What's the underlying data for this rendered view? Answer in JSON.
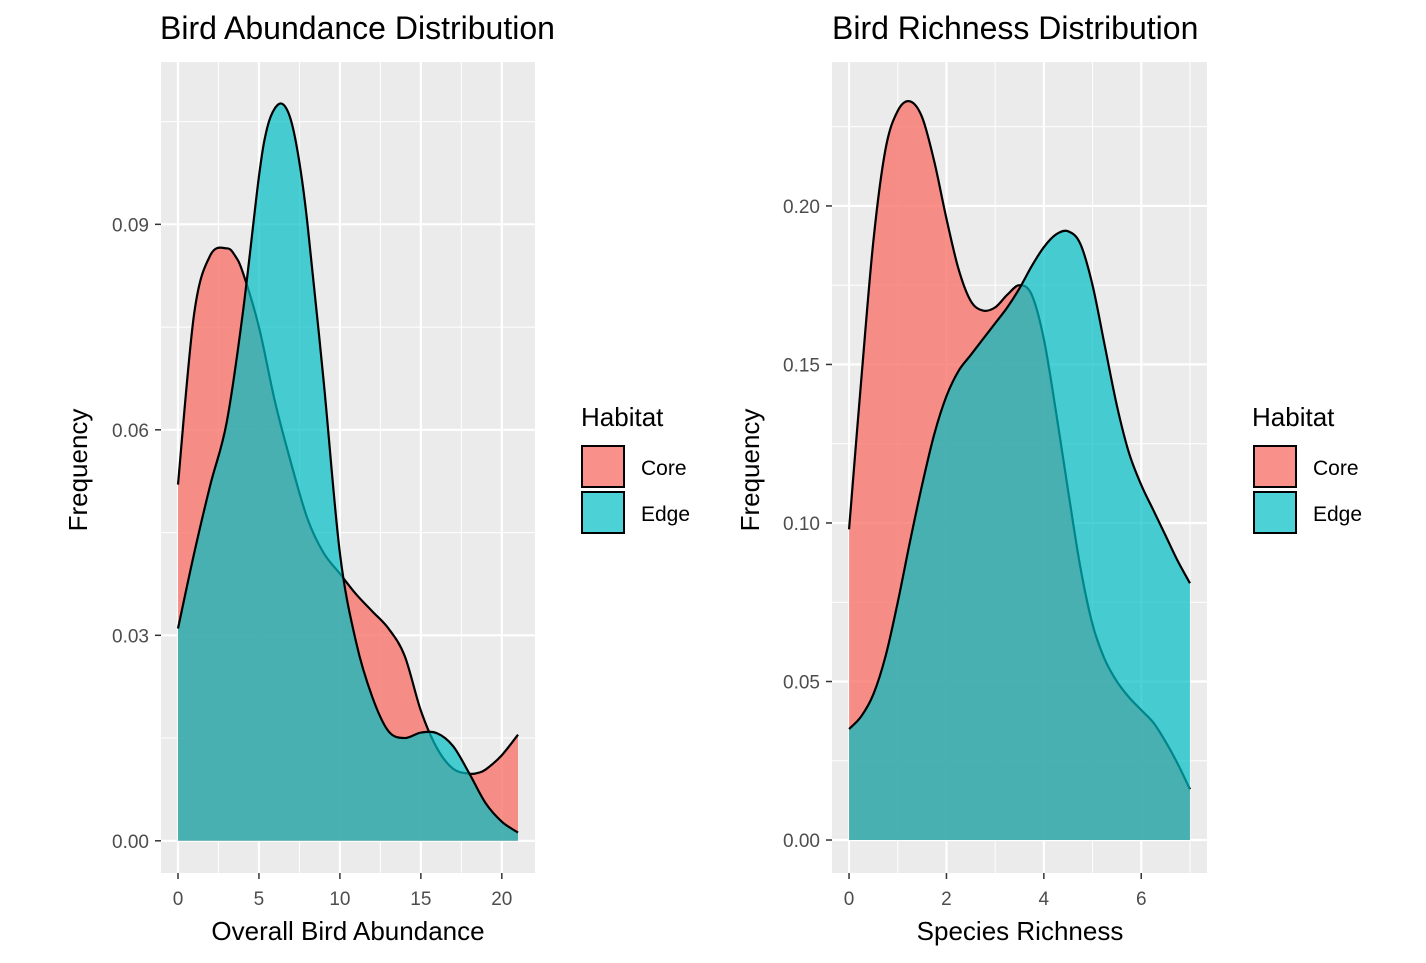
{
  "chart_data": [
    {
      "type": "area",
      "title": "Bird Abundance Distribution",
      "xlabel": "Overall Bird Abundance",
      "ylabel": "Frequency",
      "xlim": [
        -1.05,
        22.05
      ],
      "ylim": [
        -0.0047,
        0.1137
      ],
      "x_ticks": [
        0,
        5,
        10,
        15,
        20
      ],
      "x_tick_labels": [
        "0",
        "5",
        "10",
        "15",
        "20"
      ],
      "y_ticks": [
        0.0,
        0.03,
        0.06,
        0.09
      ],
      "y_tick_labels": [
        "0.00",
        "0.03",
        "0.06",
        "0.09"
      ],
      "legend": {
        "title": "Habitat",
        "position": "right",
        "entries": [
          "Core",
          "Edge"
        ]
      },
      "series": [
        {
          "name": "Core",
          "color": "#F8766D",
          "x": [
            0,
            1,
            2,
            3,
            3.5,
            4,
            5,
            6,
            7,
            8,
            9,
            10,
            11,
            12,
            13,
            14,
            15,
            16,
            17,
            18,
            18.5,
            19,
            20,
            21
          ],
          "y": [
            0.052,
            0.077,
            0.0855,
            0.0865,
            0.0855,
            0.083,
            0.075,
            0.064,
            0.055,
            0.047,
            0.042,
            0.039,
            0.036,
            0.0335,
            0.031,
            0.027,
            0.019,
            0.0135,
            0.0105,
            0.0098,
            0.0099,
            0.0104,
            0.0125,
            0.0155
          ]
        },
        {
          "name": "Edge",
          "color": "#00BFC4",
          "x": [
            0,
            1,
            2,
            3,
            4,
            5,
            5.5,
            6,
            6.5,
            7,
            7.5,
            8,
            9,
            10,
            11,
            12,
            13,
            14,
            15,
            16,
            17,
            18,
            19,
            20,
            21
          ],
          "y": [
            0.031,
            0.042,
            0.052,
            0.061,
            0.077,
            0.097,
            0.104,
            0.107,
            0.1075,
            0.105,
            0.099,
            0.09,
            0.067,
            0.042,
            0.029,
            0.021,
            0.016,
            0.015,
            0.0158,
            0.0157,
            0.0138,
            0.0098,
            0.0055,
            0.0028,
            0.0012
          ]
        }
      ]
    },
    {
      "type": "area",
      "title": "Bird Richness Distribution",
      "xlabel": "Species Richness",
      "ylabel": "Frequency",
      "xlim": [
        -0.35,
        7.35
      ],
      "ylim": [
        -0.0104,
        0.2454
      ],
      "x_ticks": [
        0,
        2,
        4,
        6
      ],
      "x_tick_labels": [
        "0",
        "2",
        "4",
        "6"
      ],
      "y_ticks": [
        0.0,
        0.05,
        0.1,
        0.15,
        0.2
      ],
      "y_tick_labels": [
        "0.00",
        "0.05",
        "0.10",
        "0.15",
        "0.20"
      ],
      "legend": {
        "title": "Habitat",
        "position": "right",
        "entries": [
          "Core",
          "Edge"
        ]
      },
      "series": [
        {
          "name": "Core",
          "color": "#F8766D",
          "x": [
            0,
            0.25,
            0.5,
            0.75,
            1,
            1.25,
            1.5,
            1.75,
            2,
            2.25,
            2.5,
            2.75,
            3,
            3.25,
            3.5,
            3.75,
            4,
            4.25,
            4.5,
            4.75,
            5,
            5.25,
            5.5,
            5.75,
            6,
            6.25,
            6.5,
            6.75,
            7
          ],
          "y": [
            0.098,
            0.145,
            0.189,
            0.218,
            0.23,
            0.233,
            0.228,
            0.214,
            0.196,
            0.18,
            0.17,
            0.167,
            0.168,
            0.172,
            0.175,
            0.172,
            0.158,
            0.135,
            0.11,
            0.086,
            0.068,
            0.057,
            0.05,
            0.045,
            0.041,
            0.037,
            0.031,
            0.024,
            0.016
          ]
        },
        {
          "name": "Edge",
          "color": "#00BFC4",
          "x": [
            0,
            0.25,
            0.5,
            0.75,
            1,
            1.25,
            1.5,
            1.75,
            2,
            2.25,
            2.5,
            2.75,
            3,
            3.25,
            3.5,
            3.75,
            4,
            4.25,
            4.5,
            4.75,
            5,
            5.25,
            5.5,
            5.75,
            6,
            6.25,
            6.5,
            6.75,
            7
          ],
          "y": [
            0.035,
            0.039,
            0.046,
            0.058,
            0.075,
            0.094,
            0.112,
            0.128,
            0.14,
            0.148,
            0.153,
            0.158,
            0.163,
            0.168,
            0.174,
            0.181,
            0.187,
            0.191,
            0.192,
            0.188,
            0.175,
            0.156,
            0.137,
            0.122,
            0.112,
            0.104,
            0.096,
            0.088,
            0.081
          ]
        }
      ]
    }
  ]
}
